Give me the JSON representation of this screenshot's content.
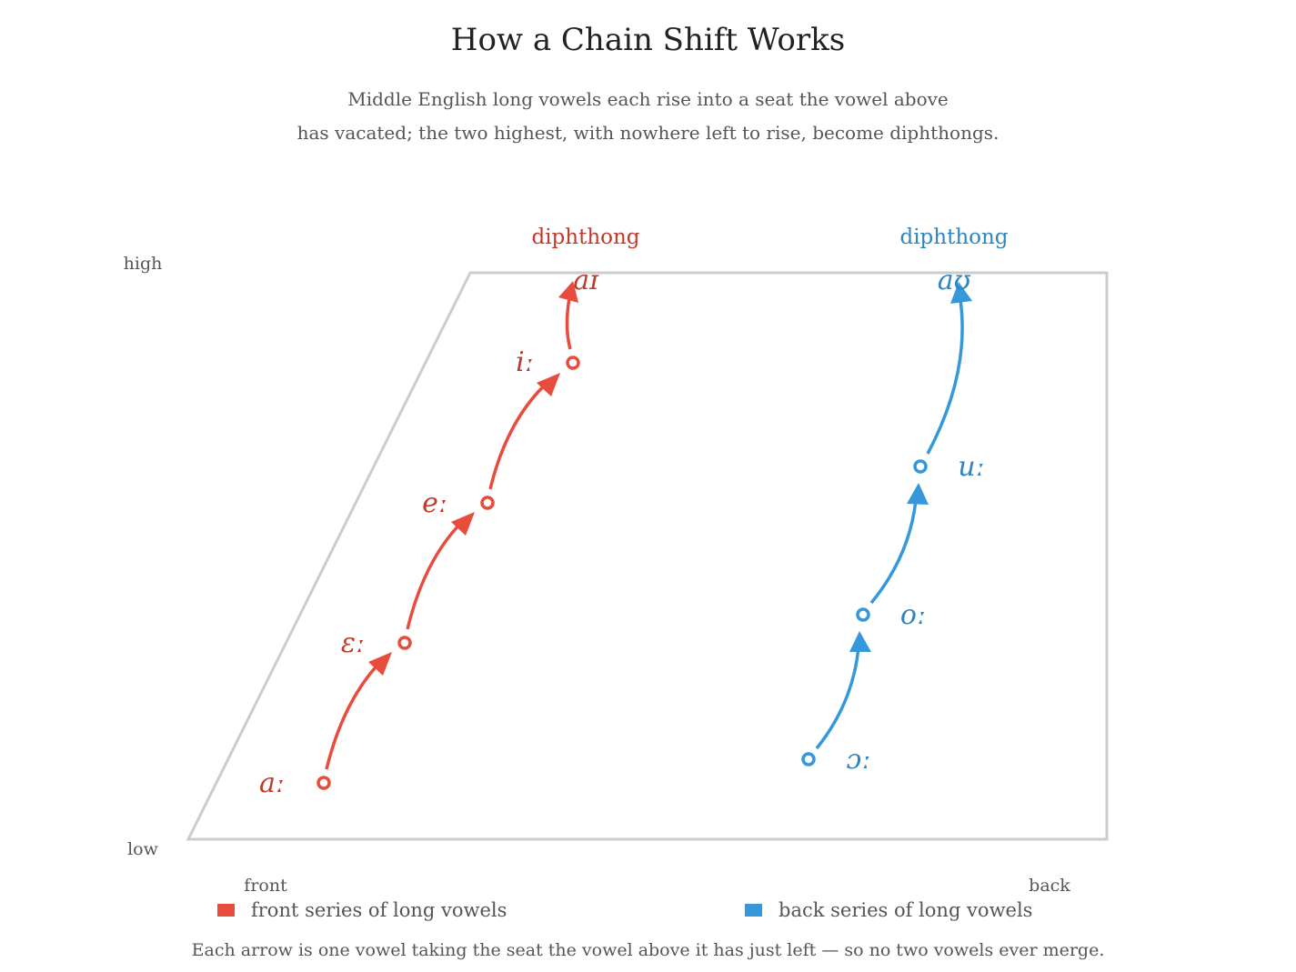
{
  "title": "How a Chain Shift Works",
  "subtitle_lines": [
    "Middle English long vowels each rise into a seat the vowel above",
    "has vacated; the two highest, with nowhere left to rise, become diphthongs."
  ],
  "axes": {
    "high": "high",
    "low": "low",
    "front": "front",
    "back": "back"
  },
  "colors": {
    "front": "#e74c3c",
    "front_text": "#c0392b",
    "back": "#3498db",
    "back_text": "#2e86c1",
    "frame": "#cccccc"
  },
  "front_series": {
    "vowels": [
      "aː",
      "ɛː",
      "eː",
      "iː"
    ],
    "diphthong": "aɪ",
    "diphthong_label": "diphthong"
  },
  "back_series": {
    "vowels": [
      "ɔː",
      "oː",
      "uː"
    ],
    "diphthong": "aʊ",
    "diphthong_label": "diphthong"
  },
  "legend": {
    "front": "front series of long vowels",
    "back": "back series of long vowels"
  },
  "footnote": "Each arrow is one vowel taking the seat the vowel above it has just left — so no two vowels ever merge."
}
